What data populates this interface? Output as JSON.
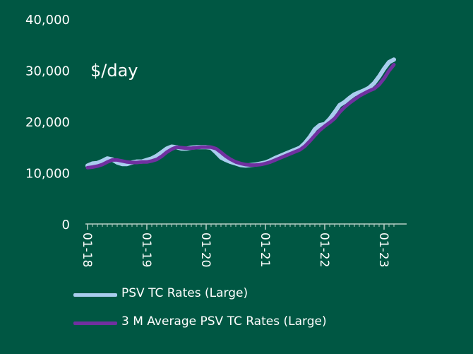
{
  "chart_data": {
    "type": "line",
    "title": "",
    "xlabel": "",
    "ylabel": "$/day",
    "ylim": [
      0,
      40000
    ],
    "yticks": [
      0,
      10000,
      20000,
      30000,
      40000
    ],
    "ytick_labels": [
      "0",
      "10,000",
      "20,000",
      "30,000",
      "40,000"
    ],
    "xticks": [
      "01-18",
      "01-19",
      "01-20",
      "01-21",
      "01-22",
      "01-23"
    ],
    "x": [
      "01-18",
      "02-18",
      "03-18",
      "04-18",
      "05-18",
      "06-18",
      "07-18",
      "08-18",
      "09-18",
      "10-18",
      "11-18",
      "12-18",
      "01-19",
      "02-19",
      "03-19",
      "04-19",
      "05-19",
      "06-19",
      "07-19",
      "08-19",
      "09-19",
      "10-19",
      "11-19",
      "12-19",
      "01-20",
      "02-20",
      "03-20",
      "04-20",
      "05-20",
      "06-20",
      "07-20",
      "08-20",
      "09-20",
      "10-20",
      "11-20",
      "12-20",
      "01-21",
      "02-21",
      "03-21",
      "04-21",
      "05-21",
      "06-21",
      "07-21",
      "08-21",
      "09-21",
      "10-21",
      "11-21",
      "12-21",
      "01-22",
      "02-22",
      "03-22",
      "04-22",
      "05-22",
      "06-22",
      "07-22",
      "08-22",
      "09-22",
      "10-22",
      "11-22",
      "12-22",
      "01-23",
      "02-23",
      "03-23"
    ],
    "series": [
      {
        "name": "PSV TC Rates (Large)",
        "color": "#a9cdee",
        "values": [
          11400,
          11800,
          11900,
          12300,
          12800,
          12600,
          12000,
          11700,
          11700,
          12000,
          12200,
          12200,
          12500,
          12800,
          13300,
          14000,
          14700,
          15100,
          15000,
          14700,
          14700,
          14900,
          15000,
          15000,
          15000,
          14900,
          14000,
          13000,
          12500,
          12100,
          11800,
          11500,
          11400,
          11500,
          11600,
          11800,
          12000,
          12400,
          12900,
          13300,
          13700,
          14100,
          14500,
          14900,
          15800,
          17000,
          18500,
          19300,
          19500,
          20500,
          21800,
          23200,
          23800,
          24600,
          25300,
          25700,
          26100,
          26600,
          27500,
          28800,
          30300,
          31600,
          32100
        ]
      },
      {
        "name": "3 M Average PSV TC Rates (Large)",
        "color": "#7030a0",
        "values": [
          11000,
          11100,
          11300,
          11600,
          12100,
          12500,
          12500,
          12300,
          12100,
          12000,
          12000,
          12100,
          12100,
          12300,
          12600,
          13200,
          14000,
          14600,
          15000,
          14900,
          14800,
          14800,
          14900,
          15000,
          15000,
          15000,
          14700,
          14000,
          13200,
          12600,
          12100,
          11800,
          11600,
          11500,
          11500,
          11600,
          11800,
          12100,
          12500,
          12900,
          13300,
          13700,
          14100,
          14500,
          15200,
          16200,
          17300,
          18300,
          19100,
          19800,
          20600,
          21800,
          22800,
          23600,
          24300,
          25000,
          25500,
          26000,
          26400,
          27200,
          28400,
          29900,
          31100
        ]
      }
    ],
    "legend": "bottom-left"
  }
}
